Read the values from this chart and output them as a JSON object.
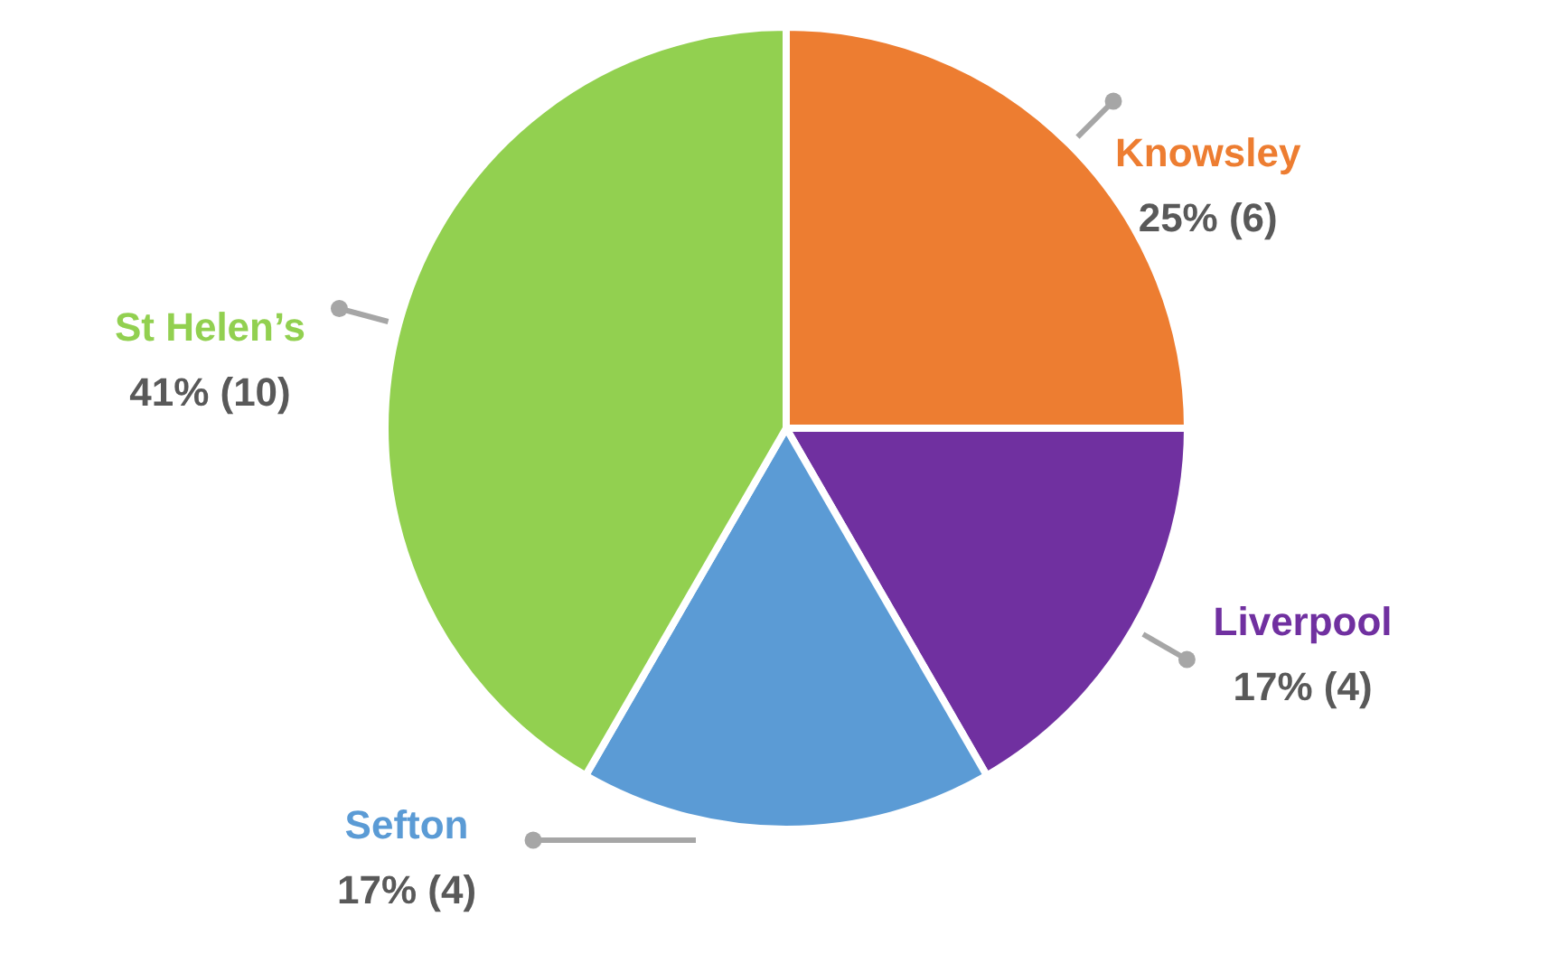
{
  "chart_data": {
    "type": "pie",
    "categories": [
      "Knowsley",
      "Liverpool",
      "Sefton",
      "St Helen’s"
    ],
    "values": [
      6,
      4,
      4,
      10
    ],
    "colors": [
      "#ed7d31",
      "#7030a0",
      "#5b9bd5",
      "#92d050"
    ],
    "value_labels": [
      "25% (6)",
      "17% (4)",
      "17% (4)",
      "41% (10)"
    ]
  }
}
